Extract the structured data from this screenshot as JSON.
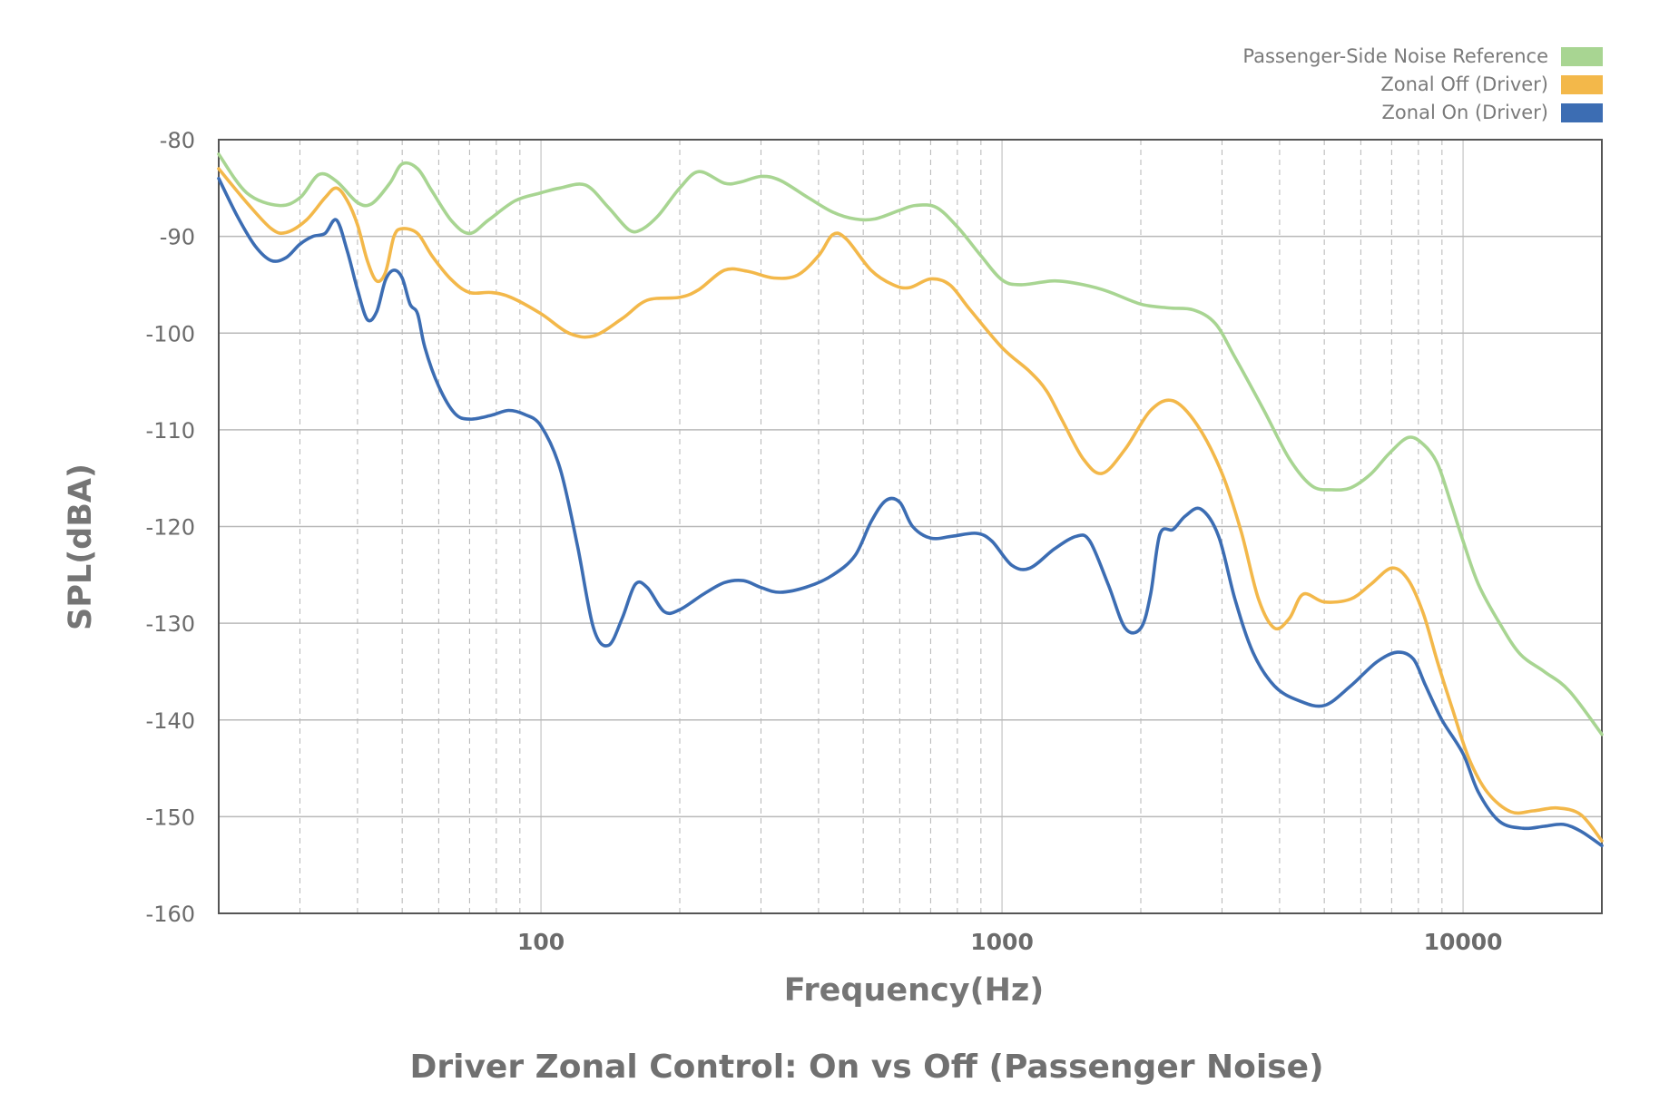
{
  "chart_data": {
    "type": "line",
    "title": "Driver Zonal Control: On vs Off (Passenger Noise)",
    "xlabel": "Frequency(Hz)",
    "ylabel": "SPL(dBA)",
    "x_scale": "log",
    "xlim": [
      20,
      20000
    ],
    "ylim": [
      -160,
      -80
    ],
    "x_ticks": [
      100,
      1000,
      10000
    ],
    "x_tick_labels": [
      "100",
      "1000",
      "10000"
    ],
    "y_ticks": [
      -80,
      -90,
      -100,
      -110,
      -120,
      -130,
      -140,
      -150,
      -160
    ],
    "y_tick_labels": [
      "-80",
      "-90",
      "-100",
      "-110",
      "-120",
      "-130",
      "-140",
      "-150",
      "-160"
    ],
    "grid": {
      "y_major": true,
      "x_minor_dashed": true
    },
    "legend_position": "top-right",
    "series": [
      {
        "name": "Passenger-Side Noise Reference",
        "color": "#a8d592",
        "points": [
          [
            20,
            -81.5
          ],
          [
            23,
            -85.5
          ],
          [
            27,
            -86.8
          ],
          [
            30,
            -86
          ],
          [
            33,
            -83.6
          ],
          [
            36,
            -84.3
          ],
          [
            40,
            -86.5
          ],
          [
            43,
            -86.6
          ],
          [
            47,
            -84.5
          ],
          [
            50,
            -82.5
          ],
          [
            54,
            -83
          ],
          [
            58,
            -85.3
          ],
          [
            64,
            -88.4
          ],
          [
            70,
            -89.7
          ],
          [
            77,
            -88.3
          ],
          [
            88,
            -86.3
          ],
          [
            100,
            -85.5
          ],
          [
            110,
            -85
          ],
          [
            125,
            -84.7
          ],
          [
            140,
            -87
          ],
          [
            155,
            -89.3
          ],
          [
            165,
            -89.3
          ],
          [
            180,
            -87.8
          ],
          [
            200,
            -85
          ],
          [
            220,
            -83.3
          ],
          [
            250,
            -84.5
          ],
          [
            270,
            -84.4
          ],
          [
            300,
            -83.8
          ],
          [
            330,
            -84.2
          ],
          [
            380,
            -86
          ],
          [
            430,
            -87.5
          ],
          [
            480,
            -88.2
          ],
          [
            530,
            -88.2
          ],
          [
            600,
            -87.3
          ],
          [
            650,
            -86.8
          ],
          [
            720,
            -87
          ],
          [
            800,
            -89
          ],
          [
            900,
            -92
          ],
          [
            1000,
            -94.5
          ],
          [
            1100,
            -95
          ],
          [
            1300,
            -94.6
          ],
          [
            1500,
            -95
          ],
          [
            1700,
            -95.7
          ],
          [
            2000,
            -97
          ],
          [
            2300,
            -97.4
          ],
          [
            2600,
            -97.6
          ],
          [
            2900,
            -99
          ],
          [
            3200,
            -102.5
          ],
          [
            3700,
            -108
          ],
          [
            4200,
            -113
          ],
          [
            4700,
            -115.8
          ],
          [
            5200,
            -116.2
          ],
          [
            5700,
            -116
          ],
          [
            6300,
            -114.6
          ],
          [
            6900,
            -112.5
          ],
          [
            7600,
            -110.8
          ],
          [
            8200,
            -111.5
          ],
          [
            8800,
            -113.5
          ],
          [
            9400,
            -117.5
          ],
          [
            10000,
            -121.5
          ],
          [
            10800,
            -126
          ],
          [
            12000,
            -130
          ],
          [
            13300,
            -133.2
          ],
          [
            15000,
            -135
          ],
          [
            17000,
            -137
          ],
          [
            20000,
            -141.5
          ]
        ]
      },
      {
        "name": "Zonal Off (Driver)",
        "color": "#f3b84a",
        "points": [
          [
            20,
            -83
          ],
          [
            23,
            -86.5
          ],
          [
            26,
            -89.2
          ],
          [
            28,
            -89.6
          ],
          [
            31,
            -88.3
          ],
          [
            34,
            -86
          ],
          [
            36,
            -85
          ],
          [
            38,
            -86.3
          ],
          [
            40,
            -88.8
          ],
          [
            42,
            -92.5
          ],
          [
            44,
            -94.6
          ],
          [
            46,
            -93.7
          ],
          [
            48,
            -90
          ],
          [
            50,
            -89.2
          ],
          [
            54,
            -89.7
          ],
          [
            58,
            -92
          ],
          [
            64,
            -94.5
          ],
          [
            70,
            -95.8
          ],
          [
            78,
            -95.8
          ],
          [
            86,
            -96.3
          ],
          [
            100,
            -98
          ],
          [
            115,
            -100
          ],
          [
            130,
            -100.3
          ],
          [
            150,
            -98.5
          ],
          [
            170,
            -96.6
          ],
          [
            200,
            -96.3
          ],
          [
            220,
            -95.5
          ],
          [
            250,
            -93.5
          ],
          [
            280,
            -93.6
          ],
          [
            320,
            -94.3
          ],
          [
            360,
            -94
          ],
          [
            400,
            -92
          ],
          [
            430,
            -89.8
          ],
          [
            460,
            -90.3
          ],
          [
            520,
            -93.5
          ],
          [
            580,
            -95
          ],
          [
            630,
            -95.3
          ],
          [
            700,
            -94.4
          ],
          [
            770,
            -95
          ],
          [
            850,
            -97.5
          ],
          [
            1000,
            -101.5
          ],
          [
            1150,
            -104
          ],
          [
            1250,
            -106
          ],
          [
            1350,
            -109
          ],
          [
            1500,
            -113
          ],
          [
            1650,
            -114.5
          ],
          [
            1850,
            -112
          ],
          [
            2100,
            -108
          ],
          [
            2350,
            -107
          ],
          [
            2650,
            -109.5
          ],
          [
            3000,
            -114.5
          ],
          [
            3300,
            -120.5
          ],
          [
            3600,
            -127.5
          ],
          [
            3900,
            -130.5
          ],
          [
            4200,
            -129.5
          ],
          [
            4500,
            -127
          ],
          [
            5000,
            -127.8
          ],
          [
            5700,
            -127.5
          ],
          [
            6300,
            -126
          ],
          [
            7000,
            -124.3
          ],
          [
            7600,
            -125.5
          ],
          [
            8200,
            -129
          ],
          [
            8800,
            -134
          ],
          [
            9500,
            -139
          ],
          [
            10300,
            -144
          ],
          [
            11300,
            -147.5
          ],
          [
            12700,
            -149.5
          ],
          [
            14200,
            -149.4
          ],
          [
            16000,
            -149.1
          ],
          [
            18000,
            -149.8
          ],
          [
            20000,
            -152.5
          ]
        ]
      },
      {
        "name": "Zonal On (Driver)",
        "color": "#3c6db3",
        "points": [
          [
            20,
            -84
          ],
          [
            22,
            -88
          ],
          [
            24,
            -91
          ],
          [
            26,
            -92.5
          ],
          [
            28,
            -92.2
          ],
          [
            30,
            -90.8
          ],
          [
            32,
            -90
          ],
          [
            34,
            -89.7
          ],
          [
            36,
            -88.3
          ],
          [
            38,
            -91.5
          ],
          [
            40,
            -95.5
          ],
          [
            42,
            -98.6
          ],
          [
            44,
            -97.8
          ],
          [
            46,
            -94.5
          ],
          [
            48,
            -93.5
          ],
          [
            50,
            -94.3
          ],
          [
            52,
            -97
          ],
          [
            54,
            -98
          ],
          [
            56,
            -101.5
          ],
          [
            60,
            -105.5
          ],
          [
            65,
            -108.3
          ],
          [
            70,
            -108.9
          ],
          [
            78,
            -108.5
          ],
          [
            85,
            -108
          ],
          [
            92,
            -108.4
          ],
          [
            100,
            -109.6
          ],
          [
            110,
            -114
          ],
          [
            120,
            -122
          ],
          [
            130,
            -130.5
          ],
          [
            140,
            -132.3
          ],
          [
            150,
            -129.5
          ],
          [
            160,
            -126
          ],
          [
            170,
            -126.3
          ],
          [
            185,
            -128.8
          ],
          [
            200,
            -128.6
          ],
          [
            225,
            -127
          ],
          [
            250,
            -125.8
          ],
          [
            275,
            -125.6
          ],
          [
            300,
            -126.3
          ],
          [
            330,
            -126.8
          ],
          [
            380,
            -126.2
          ],
          [
            430,
            -125
          ],
          [
            480,
            -123
          ],
          [
            520,
            -119.5
          ],
          [
            560,
            -117.3
          ],
          [
            600,
            -117.5
          ],
          [
            640,
            -120
          ],
          [
            700,
            -121.2
          ],
          [
            780,
            -121
          ],
          [
            880,
            -120.7
          ],
          [
            950,
            -121.5
          ],
          [
            1050,
            -124
          ],
          [
            1150,
            -124.3
          ],
          [
            1300,
            -122.3
          ],
          [
            1450,
            -121
          ],
          [
            1550,
            -121.5
          ],
          [
            1700,
            -126
          ],
          [
            1850,
            -130.5
          ],
          [
            2000,
            -130.5
          ],
          [
            2100,
            -127
          ],
          [
            2200,
            -120.8
          ],
          [
            2350,
            -120.3
          ],
          [
            2500,
            -118.9
          ],
          [
            2700,
            -118.2
          ],
          [
            2950,
            -121
          ],
          [
            3200,
            -127.5
          ],
          [
            3500,
            -133
          ],
          [
            3900,
            -136.5
          ],
          [
            4400,
            -138
          ],
          [
            5000,
            -138.5
          ],
          [
            5700,
            -136.5
          ],
          [
            6500,
            -134
          ],
          [
            7200,
            -133
          ],
          [
            7800,
            -133.7
          ],
          [
            8300,
            -136.5
          ],
          [
            9000,
            -140
          ],
          [
            10000,
            -143.5
          ],
          [
            10800,
            -147.5
          ],
          [
            12000,
            -150.5
          ],
          [
            13500,
            -151.2
          ],
          [
            15000,
            -151
          ],
          [
            16500,
            -150.8
          ],
          [
            18000,
            -151.5
          ],
          [
            20000,
            -153
          ]
        ]
      }
    ]
  }
}
